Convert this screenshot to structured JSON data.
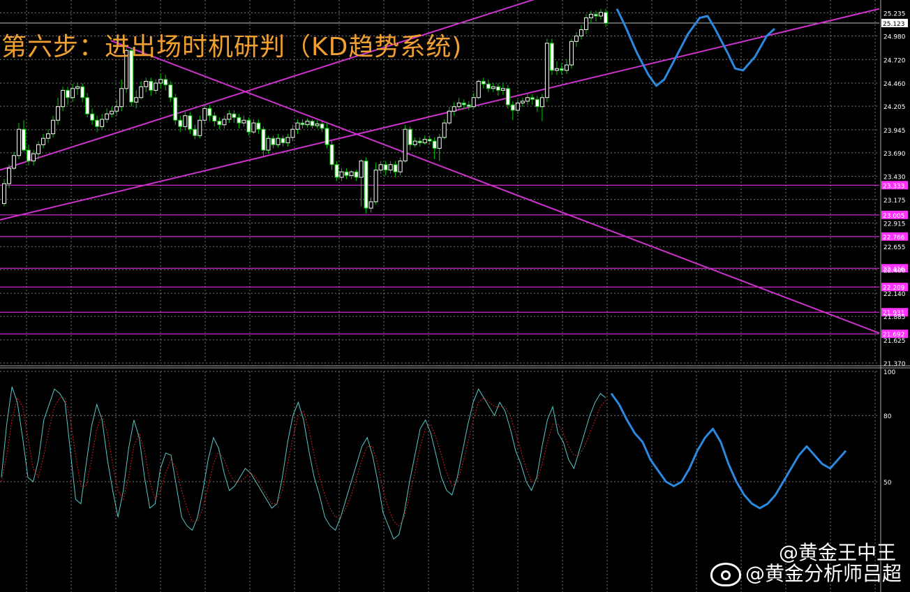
{
  "title": "第六步：进出场时机研判（KD趋势系统)",
  "watermark": {
    "line1": "@黄金王中王",
    "line2": "@黄金分析师吕超"
  },
  "colors": {
    "background": "#000000",
    "grid": "#7a7a7a",
    "bull_candle": "#ffffff",
    "bear_candle": "#ffffff",
    "wick": "#00cc00",
    "trendline": "#cc33cc",
    "level_line": "#ff33ff",
    "forecast": "#2b8ae0",
    "k_line": "#58c8c8",
    "d_line": "#cc2020",
    "title": "#f0a030",
    "axis_text": "#ffffff"
  },
  "chart_data": [
    {
      "type": "candlestick",
      "title": "",
      "ylim": [
        21.37,
        25.3
      ],
      "y_ticks": [
        "25.235",
        "24.980",
        "24.720",
        "24.460",
        "24.205",
        "23.945",
        "23.690",
        "23.430",
        "23.175",
        "22.915",
        "22.655",
        "22.400",
        "22.140",
        "21.885",
        "21.625",
        "21.370"
      ],
      "current_price": "25.123",
      "levels": [
        {
          "label": "23.333",
          "value": 23.333
        },
        {
          "label": "23.005",
          "value": 23.005
        },
        {
          "label": "22.766",
          "value": 22.766
        },
        {
          "label": "22.416",
          "value": 22.416
        },
        {
          "label": "22.209",
          "value": 22.209
        },
        {
          "label": "21.931",
          "value": 21.931
        },
        {
          "label": "21.692",
          "value": 21.692
        }
      ],
      "candles": [
        [
          23.13,
          23.35,
          23.1,
          23.4
        ],
        [
          23.35,
          23.52,
          23.3,
          23.56
        ],
        [
          23.52,
          23.66,
          23.5,
          23.7
        ],
        [
          23.66,
          23.95,
          23.62,
          24.02
        ],
        [
          23.95,
          23.72,
          23.7,
          24.05
        ],
        [
          23.72,
          23.6,
          23.55,
          23.78
        ],
        [
          23.6,
          23.68,
          23.55,
          23.72
        ],
        [
          23.68,
          23.78,
          23.62,
          23.82
        ],
        [
          23.78,
          23.85,
          23.74,
          23.9
        ],
        [
          23.85,
          23.9,
          23.8,
          23.95
        ],
        [
          23.9,
          24.05,
          23.86,
          24.1
        ],
        [
          24.05,
          24.2,
          24.0,
          24.3
        ],
        [
          24.2,
          24.38,
          24.15,
          24.42
        ],
        [
          24.38,
          24.3,
          24.22,
          24.42
        ],
        [
          24.3,
          24.4,
          24.25,
          24.45
        ],
        [
          24.4,
          24.42,
          24.33,
          24.46
        ],
        [
          24.42,
          24.3,
          24.25,
          24.46
        ],
        [
          24.3,
          24.12,
          24.08,
          24.35
        ],
        [
          24.12,
          24.05,
          24.0,
          24.18
        ],
        [
          24.05,
          23.98,
          23.92,
          24.1
        ],
        [
          23.98,
          24.06,
          23.95,
          24.12
        ],
        [
          24.06,
          24.12,
          24.02,
          24.18
        ],
        [
          24.12,
          24.15,
          24.08,
          24.2
        ],
        [
          24.15,
          24.2,
          24.1,
          24.28
        ],
        [
          24.2,
          24.4,
          24.15,
          24.5
        ],
        [
          24.4,
          24.82,
          24.35,
          24.85
        ],
        [
          24.82,
          24.25,
          24.2,
          24.85
        ],
        [
          24.25,
          24.3,
          24.18,
          24.38
        ],
        [
          24.3,
          24.42,
          24.28,
          24.48
        ],
        [
          24.42,
          24.48,
          24.36,
          24.52
        ],
        [
          24.48,
          24.38,
          24.32,
          24.52
        ],
        [
          24.38,
          24.46,
          24.34,
          24.5
        ],
        [
          24.46,
          24.5,
          24.4,
          24.56
        ],
        [
          24.5,
          24.44,
          24.38,
          24.55
        ],
        [
          24.44,
          24.3,
          24.25,
          24.48
        ],
        [
          24.3,
          24.05,
          24.0,
          24.34
        ],
        [
          24.05,
          23.98,
          23.92,
          24.1
        ],
        [
          23.98,
          24.1,
          23.94,
          24.14
        ],
        [
          24.1,
          23.95,
          23.9,
          24.14
        ],
        [
          23.95,
          23.88,
          23.84,
          24.0
        ],
        [
          23.88,
          24.05,
          23.85,
          24.1
        ],
        [
          24.05,
          24.18,
          24.0,
          24.22
        ],
        [
          24.18,
          24.1,
          24.04,
          24.22
        ],
        [
          24.1,
          24.04,
          23.98,
          24.14
        ],
        [
          24.04,
          24.0,
          23.95,
          24.08
        ],
        [
          24.0,
          24.06,
          23.96,
          24.1
        ],
        [
          24.06,
          24.12,
          24.02,
          24.16
        ],
        [
          24.12,
          24.08,
          24.02,
          24.16
        ],
        [
          24.08,
          24.02,
          23.96,
          24.12
        ],
        [
          24.02,
          24.05,
          23.98,
          24.1
        ],
        [
          24.05,
          23.92,
          23.88,
          24.08
        ],
        [
          23.92,
          24.02,
          23.9,
          24.06
        ],
        [
          24.02,
          23.95,
          23.9,
          24.06
        ],
        [
          23.95,
          23.72,
          23.65,
          23.98
        ],
        [
          23.72,
          23.85,
          23.68,
          23.88
        ],
        [
          23.85,
          23.78,
          23.74,
          23.88
        ],
        [
          23.78,
          23.85,
          23.75,
          23.9
        ],
        [
          23.85,
          23.8,
          23.76,
          23.88
        ],
        [
          23.8,
          23.86,
          23.76,
          23.9
        ],
        [
          23.86,
          23.95,
          23.82,
          24.0
        ],
        [
          23.95,
          24.02,
          23.9,
          24.06
        ],
        [
          24.02,
          24.0,
          23.96,
          24.06
        ],
        [
          24.0,
          24.04,
          23.97,
          24.07
        ],
        [
          24.04,
          23.99,
          23.96,
          24.06
        ],
        [
          23.99,
          24.01,
          23.96,
          24.05
        ],
        [
          24.01,
          23.96,
          23.92,
          24.04
        ],
        [
          23.96,
          23.78,
          23.74,
          24.02
        ],
        [
          23.78,
          23.56,
          23.5,
          23.82
        ],
        [
          23.56,
          23.42,
          23.38,
          23.6
        ],
        [
          23.42,
          23.48,
          23.38,
          23.52
        ],
        [
          23.48,
          23.44,
          23.4,
          23.52
        ],
        [
          23.44,
          23.48,
          23.4,
          23.5
        ],
        [
          23.48,
          23.42,
          23.38,
          23.5
        ],
        [
          23.42,
          23.6,
          23.1,
          23.62
        ],
        [
          23.6,
          23.08,
          23.02,
          23.64
        ],
        [
          23.08,
          23.15,
          23.03,
          23.2
        ],
        [
          23.15,
          23.5,
          23.12,
          23.58
        ],
        [
          23.5,
          23.56,
          23.46,
          23.6
        ],
        [
          23.56,
          23.5,
          23.44,
          23.6
        ],
        [
          23.5,
          23.56,
          23.46,
          23.6
        ],
        [
          23.56,
          23.48,
          23.42,
          23.6
        ],
        [
          23.48,
          23.6,
          23.44,
          23.64
        ],
        [
          23.6,
          23.95,
          23.58,
          24.0
        ],
        [
          23.95,
          23.78,
          23.72,
          23.98
        ],
        [
          23.78,
          23.82,
          23.75,
          23.86
        ],
        [
          23.82,
          23.8,
          23.76,
          23.86
        ],
        [
          23.8,
          23.84,
          23.78,
          23.88
        ],
        [
          23.84,
          23.82,
          23.78,
          23.88
        ],
        [
          23.82,
          23.74,
          23.62,
          23.86
        ],
        [
          23.74,
          23.86,
          23.6,
          23.9
        ],
        [
          23.86,
          24.02,
          23.84,
          24.06
        ],
        [
          24.02,
          24.15,
          24.0,
          24.2
        ],
        [
          24.15,
          24.2,
          24.1,
          24.25
        ],
        [
          24.2,
          24.24,
          24.16,
          24.3
        ],
        [
          24.24,
          24.22,
          24.17,
          24.28
        ],
        [
          24.22,
          24.2,
          24.16,
          24.26
        ],
        [
          24.2,
          24.3,
          24.18,
          24.35
        ],
        [
          24.3,
          24.48,
          24.28,
          24.5
        ],
        [
          24.48,
          24.45,
          24.4,
          24.52
        ],
        [
          24.45,
          24.4,
          24.36,
          24.5
        ],
        [
          24.4,
          24.42,
          24.36,
          24.46
        ],
        [
          24.42,
          24.38,
          24.32,
          24.46
        ],
        [
          24.38,
          24.4,
          24.33,
          24.46
        ],
        [
          24.4,
          24.22,
          24.18,
          24.44
        ],
        [
          24.22,
          24.16,
          24.05,
          24.26
        ],
        [
          24.16,
          24.24,
          24.12,
          24.28
        ],
        [
          24.24,
          24.26,
          24.2,
          24.3
        ],
        [
          24.26,
          24.3,
          24.22,
          24.34
        ],
        [
          24.3,
          24.28,
          24.22,
          24.34
        ],
        [
          24.28,
          24.2,
          24.14,
          24.32
        ],
        [
          24.2,
          24.3,
          24.04,
          24.34
        ],
        [
          24.3,
          24.9,
          24.25,
          24.95
        ],
        [
          24.9,
          24.6,
          24.55,
          24.95
        ],
        [
          24.6,
          24.62,
          24.55,
          24.7
        ],
        [
          24.62,
          24.6,
          24.55,
          24.68
        ],
        [
          24.6,
          24.66,
          24.56,
          24.72
        ],
        [
          24.66,
          24.92,
          24.62,
          24.95
        ],
        [
          24.92,
          24.98,
          24.86,
          25.02
        ],
        [
          24.98,
          25.05,
          24.94,
          25.1
        ],
        [
          25.05,
          25.18,
          25.0,
          25.22
        ],
        [
          25.18,
          25.22,
          25.12,
          25.26
        ],
        [
          25.22,
          25.2,
          25.14,
          25.26
        ],
        [
          25.2,
          25.24,
          25.16,
          25.28
        ],
        [
          25.24,
          25.12,
          25.08,
          25.28
        ]
      ],
      "trendlines": [
        {
          "name": "upper-resistance",
          "from": [
            0,
            23.5
          ],
          "to": [
            1,
            26.6
          ]
        },
        {
          "name": "lower-support",
          "from": [
            0,
            22.95
          ],
          "to": [
            1,
            25.28
          ]
        },
        {
          "name": "descending",
          "from": [
            0.126,
            24.93
          ],
          "to": [
            1.0,
            21.7
          ]
        }
      ],
      "forecast": [
        [
          0,
          25.28
        ],
        [
          0.02,
          25.1
        ],
        [
          0.05,
          24.8
        ],
        [
          0.08,
          24.55
        ],
        [
          0.1,
          24.43
        ],
        [
          0.12,
          24.5
        ],
        [
          0.15,
          24.75
        ],
        [
          0.18,
          25.0
        ],
        [
          0.21,
          25.18
        ],
        [
          0.23,
          25.2
        ],
        [
          0.25,
          25.05
        ],
        [
          0.28,
          24.8
        ],
        [
          0.3,
          24.62
        ],
        [
          0.32,
          24.6
        ],
        [
          0.35,
          24.75
        ],
        [
          0.38,
          24.98
        ],
        [
          0.4,
          25.06
        ]
      ]
    },
    {
      "type": "line",
      "title": "",
      "ylim": [
        0,
        100
      ],
      "y_ticks": [
        "100",
        "80",
        "50"
      ],
      "series": [
        {
          "values": [
            52,
            76,
            93,
            86,
            70,
            52,
            50,
            60,
            78,
            85,
            92,
            90,
            86,
            64,
            42,
            40,
            58,
            75,
            85,
            78,
            60,
            46,
            34,
            46,
            65,
            78,
            70,
            52,
            38,
            40,
            56,
            63,
            62,
            48,
            34,
            30,
            28,
            34,
            46,
            60,
            70,
            65,
            54,
            46,
            48,
            52,
            56,
            54,
            50,
            46,
            42,
            38,
            40,
            52,
            68,
            80,
            86,
            78,
            64,
            52,
            44,
            34,
            30,
            28,
            34,
            42,
            50,
            58,
            66,
            70,
            62,
            50,
            36,
            30,
            24,
            26,
            36,
            50,
            62,
            74,
            78,
            72,
            62,
            52,
            46,
            44,
            52,
            64,
            76,
            86,
            92,
            88,
            84,
            80,
            86,
            82,
            74,
            64,
            58,
            50,
            46,
            52,
            66,
            78,
            84,
            72,
            68,
            60,
            56,
            64,
            72,
            80,
            86,
            90,
            88
          ]
        },
        {
          "values": [
            50,
            62,
            78,
            88,
            84,
            70,
            56,
            52,
            62,
            74,
            84,
            88,
            88,
            78,
            62,
            48,
            48,
            60,
            74,
            80,
            72,
            58,
            46,
            42,
            52,
            66,
            72,
            64,
            50,
            42,
            46,
            54,
            60,
            56,
            46,
            38,
            32,
            32,
            38,
            48,
            58,
            64,
            60,
            54,
            50,
            50,
            52,
            54,
            52,
            48,
            44,
            40,
            40,
            46,
            58,
            70,
            80,
            82,
            74,
            62,
            52,
            44,
            38,
            34,
            34,
            38,
            44,
            52,
            60,
            66,
            66,
            58,
            46,
            38,
            32,
            30,
            34,
            44,
            54,
            66,
            74,
            76,
            70,
            62,
            54,
            48,
            50,
            58,
            68,
            78,
            86,
            88,
            86,
            84,
            84,
            84,
            80,
            72,
            64,
            56,
            50,
            50,
            58,
            68,
            76,
            76,
            72,
            66,
            62,
            62,
            66,
            72,
            78,
            84,
            87
          ]
        }
      ],
      "forecast": [
        90,
        85,
        78,
        72,
        68,
        60,
        55,
        50,
        48,
        50,
        56,
        64,
        70,
        74,
        68,
        58,
        50,
        44,
        40,
        38,
        40,
        44,
        50,
        56,
        62,
        66,
        62,
        58,
        56,
        60,
        64
      ]
    }
  ]
}
